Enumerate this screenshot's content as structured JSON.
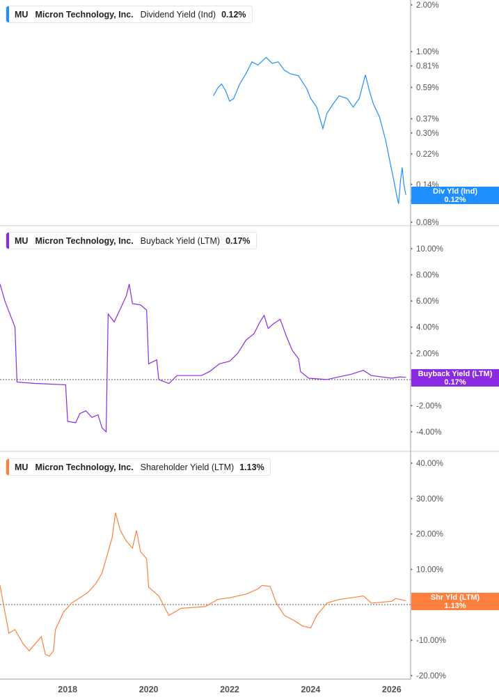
{
  "chart_data": [
    {
      "type": "line",
      "ticker": "MU",
      "company": "Micron Technology, Inc.",
      "metric": "Dividend Yield (Ind)",
      "value_label": "0.12%",
      "tag_title": "Div Yld (Ind)",
      "tag_value": "0.12%",
      "color": "#1e8fff",
      "scale": "log",
      "ylim": [
        0.08,
        2.0
      ],
      "yticks": [
        "2.00%",
        "1.00%",
        "0.81%",
        "0.59%",
        "0.37%",
        "0.30%",
        "0.22%",
        "0.14%",
        "0.11%",
        "0.08%"
      ],
      "ytick_values": [
        2,
        1,
        0.81,
        0.59,
        0.37,
        0.3,
        0.22,
        0.14,
        0.11,
        0.08
      ],
      "points": [
        [
          2021.6,
          0.52
        ],
        [
          2021.7,
          0.58
        ],
        [
          2021.8,
          0.62
        ],
        [
          2021.9,
          0.56
        ],
        [
          2022.0,
          0.48
        ],
        [
          2022.1,
          0.5
        ],
        [
          2022.25,
          0.62
        ],
        [
          2022.4,
          0.72
        ],
        [
          2022.55,
          0.86
        ],
        [
          2022.7,
          0.82
        ],
        [
          2022.9,
          0.92
        ],
        [
          2023.05,
          0.84
        ],
        [
          2023.2,
          0.86
        ],
        [
          2023.35,
          0.76
        ],
        [
          2023.5,
          0.72
        ],
        [
          2023.7,
          0.7
        ],
        [
          2023.9,
          0.58
        ],
        [
          2024.0,
          0.5
        ],
        [
          2024.15,
          0.44
        ],
        [
          2024.3,
          0.32
        ],
        [
          2024.4,
          0.4
        ],
        [
          2024.55,
          0.46
        ],
        [
          2024.7,
          0.52
        ],
        [
          2024.9,
          0.5
        ],
        [
          2025.05,
          0.44
        ],
        [
          2025.2,
          0.5
        ],
        [
          2025.35,
          0.71
        ],
        [
          2025.45,
          0.56
        ],
        [
          2025.55,
          0.46
        ],
        [
          2025.7,
          0.38
        ],
        [
          2025.85,
          0.27
        ],
        [
          2025.95,
          0.2
        ],
        [
          2026.05,
          0.15
        ],
        [
          2026.12,
          0.12
        ],
        [
          2026.17,
          0.105
        ],
        [
          2026.22,
          0.15
        ],
        [
          2026.26,
          0.18
        ],
        [
          2026.3,
          0.14
        ],
        [
          2026.35,
          0.12
        ]
      ]
    },
    {
      "type": "line",
      "ticker": "MU",
      "company": "Micron Technology, Inc.",
      "metric": "Buyback Yield (LTM)",
      "value_label": "0.17%",
      "tag_title": "Buyback Yield (LTM)",
      "tag_value": "0.17%",
      "color": "#8a2be2",
      "scale": "linear",
      "ylim": [
        -4.5,
        11
      ],
      "yticks": [
        "10.00%",
        "8.00%",
        "6.00%",
        "4.00%",
        "2.00%",
        "0.00%",
        "-2.00%",
        "-4.00%"
      ],
      "ytick_values": [
        10,
        8,
        6,
        4,
        2,
        0,
        -2,
        -4
      ],
      "points": [
        [
          2016.33,
          7.3
        ],
        [
          2016.45,
          6.0
        ],
        [
          2016.55,
          5.2
        ],
        [
          2016.7,
          4.0
        ],
        [
          2016.75,
          -0.2
        ],
        [
          2017.2,
          -0.3
        ],
        [
          2017.95,
          -0.4
        ],
        [
          2018.0,
          -3.2
        ],
        [
          2018.2,
          -3.3
        ],
        [
          2018.3,
          -2.6
        ],
        [
          2018.45,
          -2.4
        ],
        [
          2018.6,
          -2.9
        ],
        [
          2018.75,
          -2.7
        ],
        [
          2018.85,
          -3.7
        ],
        [
          2018.95,
          -4.0
        ],
        [
          2019.0,
          5.0
        ],
        [
          2019.15,
          4.4
        ],
        [
          2019.3,
          5.4
        ],
        [
          2019.45,
          6.4
        ],
        [
          2019.52,
          7.3
        ],
        [
          2019.6,
          5.8
        ],
        [
          2019.8,
          5.7
        ],
        [
          2019.95,
          5.3
        ],
        [
          2020.0,
          1.2
        ],
        [
          2020.2,
          1.5
        ],
        [
          2020.25,
          0.0
        ],
        [
          2020.5,
          -0.3
        ],
        [
          2020.7,
          0.3
        ],
        [
          2021.3,
          0.3
        ],
        [
          2021.5,
          0.6
        ],
        [
          2021.75,
          1.2
        ],
        [
          2022.0,
          1.4
        ],
        [
          2022.2,
          2.0
        ],
        [
          2022.4,
          3.0
        ],
        [
          2022.6,
          3.5
        ],
        [
          2022.75,
          4.4
        ],
        [
          2022.85,
          4.9
        ],
        [
          2022.95,
          3.9
        ],
        [
          2023.1,
          4.3
        ],
        [
          2023.25,
          4.6
        ],
        [
          2023.4,
          3.3
        ],
        [
          2023.55,
          2.2
        ],
        [
          2023.7,
          1.6
        ],
        [
          2023.75,
          0.6
        ],
        [
          2023.95,
          0.1
        ],
        [
          2024.4,
          0.0
        ],
        [
          2024.7,
          0.2
        ],
        [
          2025.0,
          0.4
        ],
        [
          2025.3,
          0.7
        ],
        [
          2025.5,
          0.3
        ],
        [
          2026.0,
          0.1
        ],
        [
          2026.2,
          0.2
        ],
        [
          2026.35,
          0.17
        ]
      ]
    },
    {
      "type": "line",
      "ticker": "MU",
      "company": "Micron Technology, Inc.",
      "metric": "Shareholder Yield (LTM)",
      "value_label": "1.13%",
      "tag_title": "Shr Yld (LTM)",
      "tag_value": "1.13%",
      "color": "#ff7f3e",
      "scale": "linear",
      "ylim": [
        -20,
        40
      ],
      "yticks": [
        "40.00%",
        "30.00%",
        "20.00%",
        "10.00%",
        "0.00%",
        "-10.00%",
        "-20.00%"
      ],
      "ytick_values": [
        40,
        30,
        20,
        10,
        0,
        -10,
        -20
      ],
      "points": [
        [
          2016.33,
          5.5
        ],
        [
          2016.45,
          -2
        ],
        [
          2016.55,
          -8
        ],
        [
          2016.7,
          -7
        ],
        [
          2016.9,
          -11
        ],
        [
          2017.05,
          -13
        ],
        [
          2017.2,
          -11
        ],
        [
          2017.35,
          -9
        ],
        [
          2017.45,
          -14
        ],
        [
          2017.55,
          -14.5
        ],
        [
          2017.65,
          -13
        ],
        [
          2017.7,
          -7
        ],
        [
          2017.9,
          -2
        ],
        [
          2018.1,
          0.5
        ],
        [
          2018.3,
          2
        ],
        [
          2018.5,
          3.5
        ],
        [
          2018.7,
          6
        ],
        [
          2018.85,
          9
        ],
        [
          2019.0,
          15
        ],
        [
          2019.1,
          19
        ],
        [
          2019.18,
          26
        ],
        [
          2019.3,
          21
        ],
        [
          2019.45,
          18
        ],
        [
          2019.6,
          16
        ],
        [
          2019.7,
          21
        ],
        [
          2019.8,
          15
        ],
        [
          2019.95,
          13
        ],
        [
          2020.0,
          5
        ],
        [
          2020.25,
          2.5
        ],
        [
          2020.5,
          -3
        ],
        [
          2020.8,
          -1
        ],
        [
          2021.4,
          -0.5
        ],
        [
          2021.7,
          1.5
        ],
        [
          2022.0,
          2.0
        ],
        [
          2022.4,
          3
        ],
        [
          2022.7,
          4.5
        ],
        [
          2022.8,
          5.5
        ],
        [
          2023.0,
          5.2
        ],
        [
          2023.15,
          0.5
        ],
        [
          2023.35,
          -3
        ],
        [
          2023.6,
          -4.5
        ],
        [
          2023.8,
          -6
        ],
        [
          2024.0,
          -6.5
        ],
        [
          2024.15,
          -3
        ],
        [
          2024.4,
          0.5
        ],
        [
          2024.7,
          1.5
        ],
        [
          2025.0,
          2.0
        ],
        [
          2025.3,
          2.5
        ],
        [
          2025.5,
          0.5
        ],
        [
          2026.0,
          1.0
        ],
        [
          2026.1,
          1.8
        ],
        [
          2026.35,
          1.13
        ]
      ]
    }
  ],
  "x_axis": {
    "ticks": [
      "2018",
      "2020",
      "2022",
      "2024",
      "2026"
    ],
    "tick_values": [
      2018,
      2020,
      2022,
      2024,
      2026
    ],
    "xlim": [
      2016.33,
      2026.45
    ]
  }
}
